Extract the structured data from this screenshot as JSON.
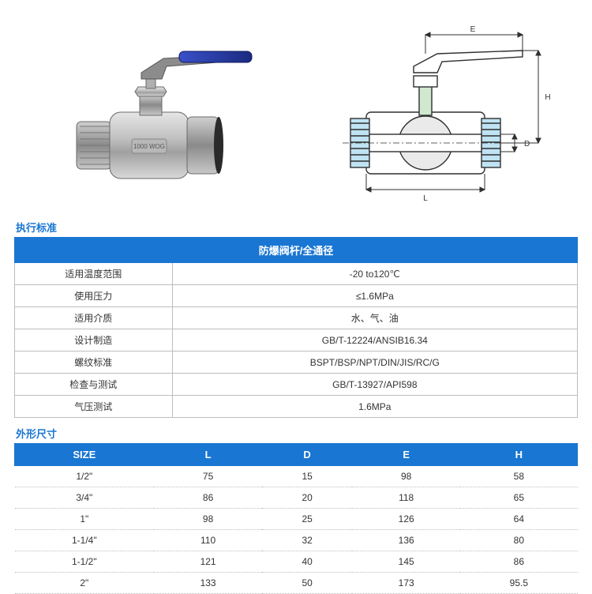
{
  "colors": {
    "header_bg": "#1976d2",
    "header_text": "#ffffff",
    "border": "#bdbdbd",
    "section_title": "#1976d2",
    "valve_body": "#c8c8c8",
    "valve_body_dark": "#9e9e9e",
    "handle": "#2235a0",
    "diagram_line": "#2f2f2f",
    "diagram_fill": "#ffffff",
    "diagram_ball": "#eaeaea"
  },
  "section_titles": {
    "standards": "执行标准",
    "dimensions": "外形尺寸"
  },
  "specs": {
    "title": "防爆阀杆/全通径",
    "rows": [
      {
        "label": "适用温度范围",
        "value": "-20 to120℃"
      },
      {
        "label": "使用压力",
        "value": "≤1.6MPa"
      },
      {
        "label": "适用介质",
        "value": "水、气、油"
      },
      {
        "label": "设计制造",
        "value": "GB/T-12224/ANSIB16.34"
      },
      {
        "label": "螺纹标准",
        "value": "BSPT/BSP/NPT/DIN/JIS/RC/G"
      },
      {
        "label": "检查与测试",
        "value": "GB/T-13927/API598"
      },
      {
        "label": "气压测试",
        "value": "1.6MPa"
      }
    ]
  },
  "dims": {
    "columns": [
      "SIZE",
      "L",
      "D",
      "E",
      "H"
    ],
    "rows": [
      [
        "1/2\"",
        "75",
        "15",
        "98",
        "58"
      ],
      [
        "3/4\"",
        "86",
        "20",
        "118",
        "65"
      ],
      [
        "1\"",
        "98",
        "25",
        "126",
        "64"
      ],
      [
        "1-1/4\"",
        "110",
        "32",
        "136",
        "80"
      ],
      [
        "1-1/2\"",
        "121",
        "40",
        "145",
        "86"
      ],
      [
        "2\"",
        "133",
        "50",
        "173",
        "95.5"
      ]
    ]
  },
  "diagram_labels": {
    "E": "E",
    "H": "H",
    "D": "D",
    "L": "L"
  }
}
